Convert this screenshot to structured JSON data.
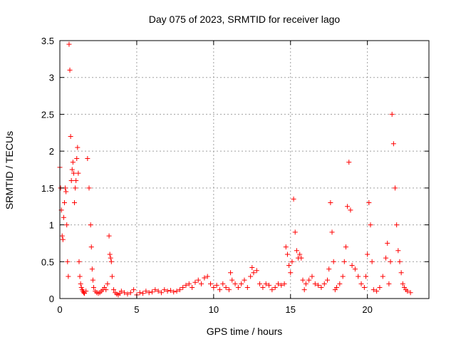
{
  "chart_data": {
    "type": "scatter",
    "title": "Day 075 of 2023, SRMTID for receiver lago",
    "xlabel": "GPS time / hours",
    "ylabel": "SRMTID / TECUs",
    "xlim": [
      0,
      24
    ],
    "ylim": [
      0,
      3.5
    ],
    "xticks": [
      0,
      5,
      10,
      15,
      20
    ],
    "xtick_labels": [
      "0",
      "5",
      "10",
      "15",
      "20"
    ],
    "yticks": [
      0,
      0.5,
      1,
      1.5,
      2,
      2.5,
      3,
      3.5
    ],
    "ytick_labels": [
      "0",
      "0.5",
      "1",
      "1.5",
      "2",
      "2.5",
      "3",
      "3.5"
    ],
    "grid": true,
    "marker": "+",
    "color": "#ff0000",
    "series": [
      {
        "name": "SRMTID",
        "x": [
          0.0,
          0.05,
          0.1,
          0.15,
          0.2,
          0.25,
          0.3,
          0.35,
          0.4,
          0.45,
          0.5,
          0.55,
          0.6,
          0.65,
          0.7,
          0.75,
          0.8,
          0.85,
          0.9,
          0.95,
          1.0,
          1.05,
          1.1,
          1.15,
          1.2,
          1.25,
          1.3,
          1.35,
          1.4,
          1.45,
          1.5,
          1.55,
          1.6,
          1.7,
          1.8,
          1.9,
          2.0,
          2.05,
          2.1,
          2.15,
          2.2,
          2.3,
          2.4,
          2.5,
          2.6,
          2.7,
          2.8,
          2.9,
          3.0,
          3.1,
          3.2,
          3.25,
          3.3,
          3.35,
          3.4,
          3.5,
          3.6,
          3.7,
          3.8,
          3.9,
          4.0,
          4.2,
          4.4,
          4.6,
          4.8,
          5.0,
          5.2,
          5.4,
          5.6,
          5.8,
          6.0,
          6.2,
          6.4,
          6.6,
          6.8,
          7.0,
          7.2,
          7.4,
          7.6,
          7.8,
          8.0,
          8.2,
          8.4,
          8.6,
          8.8,
          9.0,
          9.2,
          9.4,
          9.6,
          9.8,
          10.0,
          10.2,
          10.4,
          10.6,
          10.8,
          11.0,
          11.1,
          11.2,
          11.4,
          11.6,
          11.8,
          12.0,
          12.2,
          12.4,
          12.5,
          12.6,
          12.8,
          13.0,
          13.2,
          13.4,
          13.6,
          13.8,
          14.0,
          14.2,
          14.4,
          14.6,
          14.7,
          14.8,
          14.9,
          15.0,
          15.1,
          15.2,
          15.3,
          15.4,
          15.5,
          15.6,
          15.7,
          15.8,
          15.9,
          16.0,
          16.2,
          16.4,
          16.6,
          16.8,
          17.0,
          17.2,
          17.4,
          17.5,
          17.6,
          17.7,
          17.8,
          17.9,
          18.0,
          18.2,
          18.4,
          18.5,
          18.6,
          18.7,
          18.8,
          18.9,
          19.0,
          19.2,
          19.4,
          19.6,
          19.8,
          19.9,
          20.0,
          20.1,
          20.2,
          20.3,
          20.4,
          20.6,
          20.8,
          21.0,
          21.2,
          21.3,
          21.4,
          21.5,
          21.6,
          21.7,
          21.8,
          21.9,
          22.0,
          22.1,
          22.2,
          22.3,
          22.4,
          22.5,
          22.6,
          22.8
        ],
        "y": [
          1.78,
          1.5,
          1.2,
          0.85,
          0.8,
          1.1,
          1.3,
          1.5,
          1.45,
          1.0,
          0.5,
          0.3,
          3.45,
          3.1,
          2.2,
          1.6,
          1.75,
          1.85,
          1.7,
          1.3,
          1.5,
          1.6,
          1.9,
          2.05,
          1.7,
          0.5,
          0.3,
          0.2,
          0.15,
          0.12,
          0.1,
          0.08,
          0.07,
          0.1,
          1.9,
          1.5,
          1.0,
          0.7,
          0.4,
          0.25,
          0.15,
          0.1,
          0.08,
          0.07,
          0.08,
          0.1,
          0.12,
          0.15,
          0.12,
          0.2,
          0.85,
          0.6,
          0.55,
          0.5,
          0.3,
          0.12,
          0.08,
          0.06,
          0.05,
          0.07,
          0.1,
          0.08,
          0.06,
          0.08,
          0.12,
          0.05,
          0.08,
          0.07,
          0.1,
          0.08,
          0.09,
          0.12,
          0.1,
          0.08,
          0.12,
          0.1,
          0.11,
          0.09,
          0.1,
          0.12,
          0.15,
          0.18,
          0.2,
          0.15,
          0.22,
          0.25,
          0.2,
          0.28,
          0.3,
          0.2,
          0.15,
          0.18,
          0.12,
          0.2,
          0.15,
          0.12,
          0.35,
          0.25,
          0.2,
          0.15,
          0.2,
          0.25,
          0.15,
          0.3,
          0.42,
          0.35,
          0.38,
          0.2,
          0.15,
          0.2,
          0.18,
          0.12,
          0.15,
          0.2,
          0.18,
          0.2,
          0.7,
          0.6,
          0.45,
          0.35,
          0.5,
          1.35,
          0.9,
          0.65,
          0.55,
          0.6,
          0.55,
          0.25,
          0.12,
          0.2,
          0.25,
          0.3,
          0.2,
          0.18,
          0.15,
          0.2,
          0.25,
          0.4,
          1.3,
          0.9,
          0.5,
          0.12,
          0.15,
          0.2,
          0.3,
          0.5,
          0.7,
          1.25,
          1.85,
          1.2,
          0.45,
          0.4,
          0.3,
          0.2,
          0.15,
          0.3,
          0.6,
          1.3,
          1.0,
          0.5,
          0.12,
          0.1,
          0.15,
          0.3,
          0.55,
          0.75,
          0.2,
          0.5,
          2.5,
          2.1,
          1.5,
          1.0,
          0.65,
          0.5,
          0.35,
          0.2,
          0.15,
          0.12,
          0.1,
          0.08
        ]
      }
    ]
  }
}
